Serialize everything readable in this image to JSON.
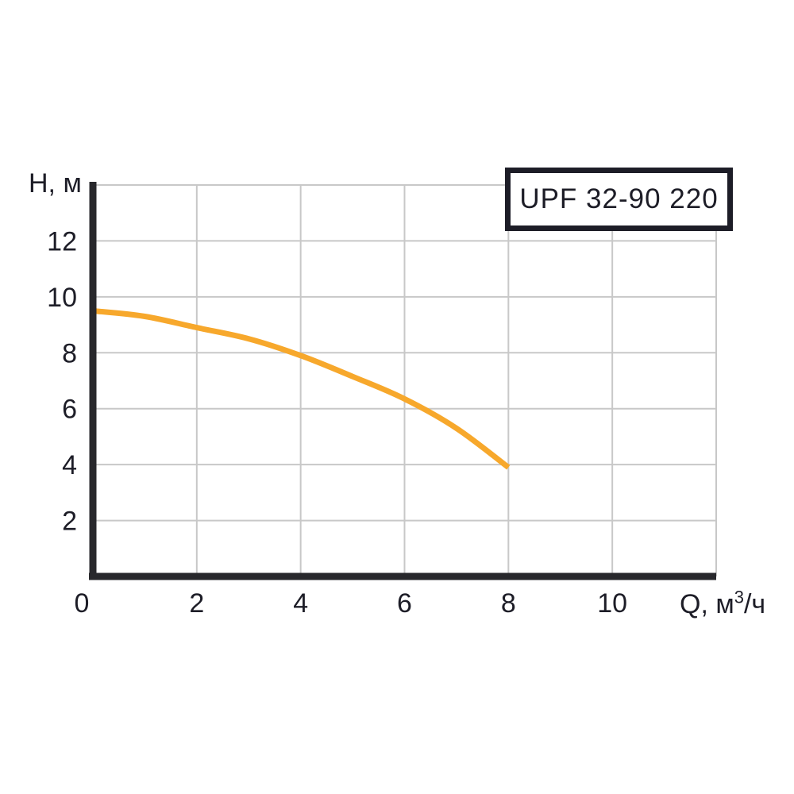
{
  "chart": {
    "model_label": "UPF 32-90 220",
    "y_axis": {
      "title": "H, м",
      "min": 0,
      "max": 14,
      "tick_labels": [
        12,
        10,
        8,
        6,
        4,
        2
      ],
      "gridlines": [
        2,
        4,
        6,
        8,
        10,
        12,
        14
      ]
    },
    "x_axis": {
      "title_full": "Q, м³/ч",
      "title_prefix": "Q, м",
      "title_sup": "3",
      "title_suffix": "/ч",
      "min": 0,
      "max": 12,
      "tick_labels": [
        0,
        2,
        4,
        6,
        8,
        10
      ],
      "gridlines": [
        2,
        4,
        6,
        8,
        10,
        12
      ]
    },
    "colors": {
      "curve": "#F7A82C",
      "axis": "#28282C",
      "grid": "#C8C8C8",
      "text": "#1D1D27",
      "box_border": "#1D1D27",
      "background": "#FFFFFF"
    }
  },
  "chart_data": {
    "type": "line",
    "title": "UPF 32-90 220",
    "xlabel": "Q, м³/ч",
    "ylabel": "H, м",
    "xlim": [
      0,
      12
    ],
    "ylim": [
      0,
      14
    ],
    "x_ticks": [
      0,
      2,
      4,
      6,
      8,
      10
    ],
    "y_ticks": [
      2,
      4,
      6,
      8,
      10,
      12
    ],
    "grid": "on",
    "legend": "none",
    "series": [
      {
        "name": "UPF 32-90 220",
        "color": "#F7A82C",
        "x": [
          0,
          1,
          2,
          3,
          4,
          5,
          6,
          7,
          8
        ],
        "y": [
          9.5,
          9.3,
          8.9,
          8.5,
          7.9,
          7.15,
          6.35,
          5.3,
          3.9
        ]
      }
    ]
  }
}
